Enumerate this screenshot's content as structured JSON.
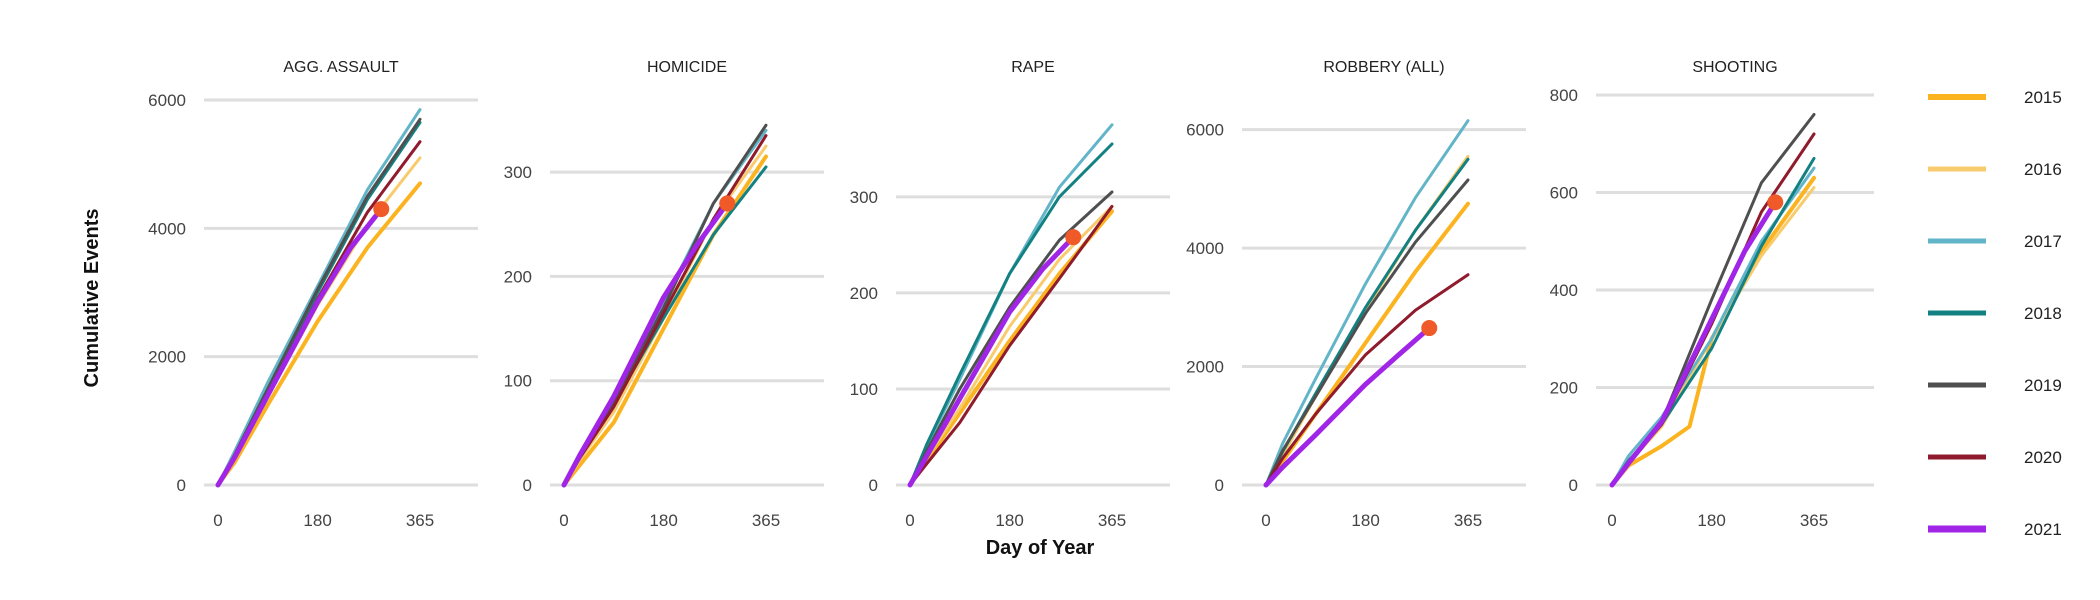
{
  "chart_data": {
    "type": "line",
    "facet_titles": [
      "AGG. ASSAULT",
      "HOMICIDE",
      "RAPE",
      "ROBBERY (ALL)",
      "SHOOTING"
    ],
    "xlabel": "Day of Year",
    "ylabel": "Cumulative Events",
    "x_ticks": [
      0,
      180,
      365
    ],
    "xlim": [
      0,
      365
    ],
    "legend_position": "right",
    "grid": "horizontal",
    "marker_color": "#ef5a28",
    "legend": [
      {
        "name": "2015",
        "color": "#fbb420",
        "width": 4
      },
      {
        "name": "2016",
        "color": "#f8cc6e",
        "width": 3
      },
      {
        "name": "2017",
        "color": "#62b5c8",
        "width": 3
      },
      {
        "name": "2018",
        "color": "#138182",
        "width": 3
      },
      {
        "name": "2019",
        "color": "#4f4f4f",
        "width": 3
      },
      {
        "name": "2020",
        "color": "#8f1b2c",
        "width": 3
      },
      {
        "name": "2021",
        "color": "#a125e6",
        "width": 5
      }
    ],
    "panels": [
      {
        "title": "AGG. ASSAULT",
        "ylim": [
          0,
          6000
        ],
        "y_ticks": [
          0,
          2000,
          4000,
          6000
        ],
        "series": [
          {
            "name": "2015",
            "x": [
              0,
              30,
              90,
              180,
              270,
              365
            ],
            "y": [
              0,
              350,
              1250,
              2550,
              3700,
              4700
            ]
          },
          {
            "name": "2016",
            "x": [
              0,
              30,
              90,
              180,
              270,
              365
            ],
            "y": [
              0,
              420,
              1380,
              2800,
              4050,
              5100
            ]
          },
          {
            "name": "2017",
            "x": [
              0,
              30,
              90,
              180,
              270,
              365
            ],
            "y": [
              0,
              520,
              1600,
              3100,
              4600,
              5850
            ]
          },
          {
            "name": "2018",
            "x": [
              0,
              30,
              90,
              180,
              270,
              365
            ],
            "y": [
              0,
              460,
              1480,
              3000,
              4450,
              5650
            ]
          },
          {
            "name": "2019",
            "x": [
              0,
              30,
              90,
              180,
              270,
              365
            ],
            "y": [
              0,
              470,
              1500,
              3050,
              4500,
              5700
            ]
          },
          {
            "name": "2020",
            "x": [
              0,
              30,
              90,
              180,
              270,
              365
            ],
            "y": [
              0,
              440,
              1420,
              2900,
              4250,
              5350
            ]
          },
          {
            "name": "2021",
            "x": [
              0,
              30,
              90,
              180,
              240,
              295
            ],
            "y": [
              0,
              430,
              1400,
              2850,
              3700,
              4300
            ]
          }
        ],
        "marker": {
          "x": 295,
          "y": 4300
        }
      },
      {
        "title": "HOMICIDE",
        "ylim": [
          0,
          350
        ],
        "y_ticks": [
          0,
          100,
          200,
          300
        ],
        "series": [
          {
            "name": "2015",
            "x": [
              0,
              30,
              90,
              180,
              270,
              365
            ],
            "y": [
              0,
              20,
              60,
              150,
              240,
              315
            ]
          },
          {
            "name": "2016",
            "x": [
              0,
              30,
              90,
              180,
              270,
              365
            ],
            "y": [
              0,
              25,
              70,
              160,
              255,
              325
            ]
          },
          {
            "name": "2017",
            "x": [
              0,
              30,
              90,
              180,
              270,
              365
            ],
            "y": [
              0,
              30,
              85,
              175,
              270,
              340
            ]
          },
          {
            "name": "2018",
            "x": [
              0,
              30,
              90,
              180,
              270,
              365
            ],
            "y": [
              0,
              28,
              78,
              160,
              240,
              305
            ]
          },
          {
            "name": "2019",
            "x": [
              0,
              30,
              90,
              180,
              270,
              365
            ],
            "y": [
              0,
              30,
              80,
              170,
              270,
              345
            ]
          },
          {
            "name": "2020",
            "x": [
              0,
              30,
              90,
              180,
              270,
              365
            ],
            "y": [
              0,
              27,
              75,
              165,
              255,
              335
            ]
          },
          {
            "name": "2021",
            "x": [
              0,
              30,
              90,
              180,
              240,
              295
            ],
            "y": [
              0,
              30,
              85,
              180,
              230,
              270
            ]
          }
        ],
        "marker": {
          "x": 295,
          "y": 270
        }
      },
      {
        "title": "RAPE",
        "ylim": [
          0,
          380
        ],
        "y_ticks": [
          0,
          100,
          200,
          300
        ],
        "series": [
          {
            "name": "2015",
            "x": [
              0,
              30,
              90,
              180,
              270,
              365
            ],
            "y": [
              0,
              25,
              75,
              150,
              220,
              285
            ]
          },
          {
            "name": "2016",
            "x": [
              0,
              30,
              90,
              180,
              270,
              365
            ],
            "y": [
              0,
              28,
              80,
              165,
              235,
              290
            ]
          },
          {
            "name": "2017",
            "x": [
              0,
              30,
              90,
              180,
              270,
              365
            ],
            "y": [
              0,
              40,
              110,
              220,
              310,
              375
            ]
          },
          {
            "name": "2018",
            "x": [
              0,
              30,
              90,
              180,
              270,
              365
            ],
            "y": [
              0,
              42,
              115,
              220,
              300,
              355
            ]
          },
          {
            "name": "2019",
            "x": [
              0,
              30,
              90,
              180,
              270,
              365
            ],
            "y": [
              0,
              35,
              100,
              185,
              255,
              305
            ]
          },
          {
            "name": "2020",
            "x": [
              0,
              30,
              90,
              180,
              270,
              365
            ],
            "y": [
              0,
              22,
              65,
              145,
              215,
              290
            ]
          },
          {
            "name": "2021",
            "x": [
              0,
              30,
              90,
              180,
              240,
              295
            ],
            "y": [
              0,
              30,
              90,
              180,
              225,
              258
            ]
          }
        ],
        "marker": {
          "x": 295,
          "y": 258
        }
      },
      {
        "title": "ROBBERY (ALL)",
        "ylim": [
          0,
          6500
        ],
        "y_ticks": [
          0,
          2000,
          4000,
          6000
        ],
        "series": [
          {
            "name": "2015",
            "x": [
              0,
              30,
              90,
              180,
              270,
              365
            ],
            "y": [
              0,
              400,
              1200,
              2400,
              3600,
              4750
            ]
          },
          {
            "name": "2016",
            "x": [
              0,
              30,
              90,
              180,
              270,
              365
            ],
            "y": [
              0,
              500,
              1500,
              2950,
              4300,
              5550
            ]
          },
          {
            "name": "2017",
            "x": [
              0,
              30,
              90,
              180,
              270,
              365
            ],
            "y": [
              0,
              700,
              1800,
              3400,
              4850,
              6150
            ]
          },
          {
            "name": "2018",
            "x": [
              0,
              30,
              90,
              180,
              270,
              365
            ],
            "y": [
              0,
              560,
              1550,
              3000,
              4300,
              5500
            ]
          },
          {
            "name": "2019",
            "x": [
              0,
              30,
              90,
              180,
              270,
              365
            ],
            "y": [
              0,
              580,
              1500,
              2900,
              4100,
              5150
            ]
          },
          {
            "name": "2020",
            "x": [
              0,
              30,
              90,
              180,
              270,
              365
            ],
            "y": [
              0,
              450,
              1200,
              2200,
              2950,
              3550
            ]
          },
          {
            "name": "2021",
            "x": [
              0,
              30,
              90,
              180,
              240,
              295
            ],
            "y": [
              0,
              300,
              850,
              1700,
              2200,
              2650
            ]
          }
        ],
        "marker": {
          "x": 295,
          "y": 2650
        }
      },
      {
        "title": "SHOOTING",
        "ylim": [
          0,
          800
        ],
        "y_ticks": [
          0,
          200,
          400,
          600,
          800
        ],
        "series": [
          {
            "name": "2015",
            "x": [
              0,
              30,
              90,
              140,
              180,
              270,
              365
            ],
            "y": [
              0,
              40,
              80,
              120,
              300,
              480,
              630
            ]
          },
          {
            "name": "2016",
            "x": [
              0,
              30,
              90,
              180,
              270,
              365
            ],
            "y": [
              0,
              45,
              120,
              300,
              470,
              610
            ]
          },
          {
            "name": "2017",
            "x": [
              0,
              30,
              90,
              180,
              270,
              365
            ],
            "y": [
              0,
              60,
              140,
              300,
              500,
              650
            ]
          },
          {
            "name": "2018",
            "x": [
              0,
              30,
              90,
              180,
              270,
              365
            ],
            "y": [
              0,
              50,
              125,
              280,
              490,
              670
            ]
          },
          {
            "name": "2019",
            "x": [
              0,
              30,
              90,
              180,
              270,
              365
            ],
            "y": [
              0,
              45,
              130,
              380,
              620,
              760
            ]
          },
          {
            "name": "2020",
            "x": [
              0,
              30,
              90,
              180,
              270,
              365
            ],
            "y": [
              0,
              45,
              125,
              330,
              560,
              720
            ]
          },
          {
            "name": "2021",
            "x": [
              0,
              30,
              90,
              180,
              240,
              295
            ],
            "y": [
              0,
              45,
              130,
              340,
              480,
              580
            ]
          }
        ],
        "marker": {
          "x": 295,
          "y": 580
        }
      }
    ]
  }
}
